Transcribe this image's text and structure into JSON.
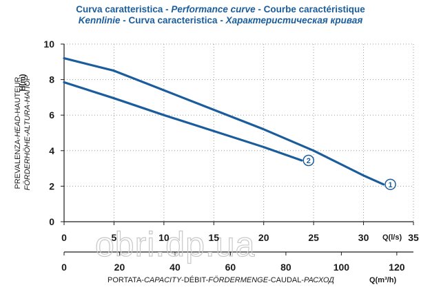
{
  "title": {
    "line1": {
      "it": "Curva caratteristica",
      "sep1": " - ",
      "en": "Performance curve",
      "sep2": " - ",
      "fr": "Courbe caractéristique"
    },
    "line2": {
      "de": "Kennlinie",
      "sep1": " - ",
      "es": "Curva caracteristica",
      "sep2": " - ",
      "ru": "Характеристическая кривая"
    }
  },
  "colors": {
    "title": "#1b5d9c",
    "curve": "#1b5d9c",
    "grid": "#9a9a9a",
    "axis": "#1a1a1a"
  },
  "watermark": "obri.dp.ua",
  "chart_data": {
    "type": "line",
    "ylabel_line1": "PREVALENZA-HEAD-HAUTEUR",
    "ylabel_line1_parts": [
      "PREVALENZA-",
      "HEAD",
      "-HAUTEUR"
    ],
    "ylabel_line2": "FÖRDERHÖHE-ALTURA-НАПОР",
    "ylabel_unit": "H(m)",
    "xlabel_text": "PORTATA-CAPACITY-DÉBIT-FÖRDERMENGE-CAUDAL-РАСХОД",
    "xlabel_parts": [
      "PORTATA-",
      "CAPACITY",
      "-DÉBIT-",
      "FÖRDERMENGE",
      "-CAUDAL-",
      "РАСХОД"
    ],
    "x1_unit": "Q(l/s)",
    "x2_unit": "Q(m³/h)",
    "ylim": [
      0,
      10
    ],
    "xlim": [
      0,
      35
    ],
    "x2lim": [
      0,
      126
    ],
    "y_ticks": [
      0,
      2,
      4,
      6,
      8,
      10
    ],
    "x_ticks": [
      0,
      5,
      10,
      15,
      20,
      25,
      30,
      35
    ],
    "x2_ticks": [
      0,
      20,
      40,
      60,
      80,
      100,
      120
    ],
    "grid": true,
    "series": [
      {
        "marker": "1",
        "x": [
          0,
          5,
          10,
          15,
          20,
          25,
          30,
          32
        ],
        "y": [
          9.2,
          8.5,
          7.4,
          6.3,
          5.2,
          4.0,
          2.6,
          2.1
        ]
      },
      {
        "marker": "2",
        "x": [
          0,
          5,
          10,
          15,
          20,
          23.8
        ],
        "y": [
          7.85,
          6.95,
          6.0,
          5.1,
          4.2,
          3.45
        ]
      }
    ]
  }
}
